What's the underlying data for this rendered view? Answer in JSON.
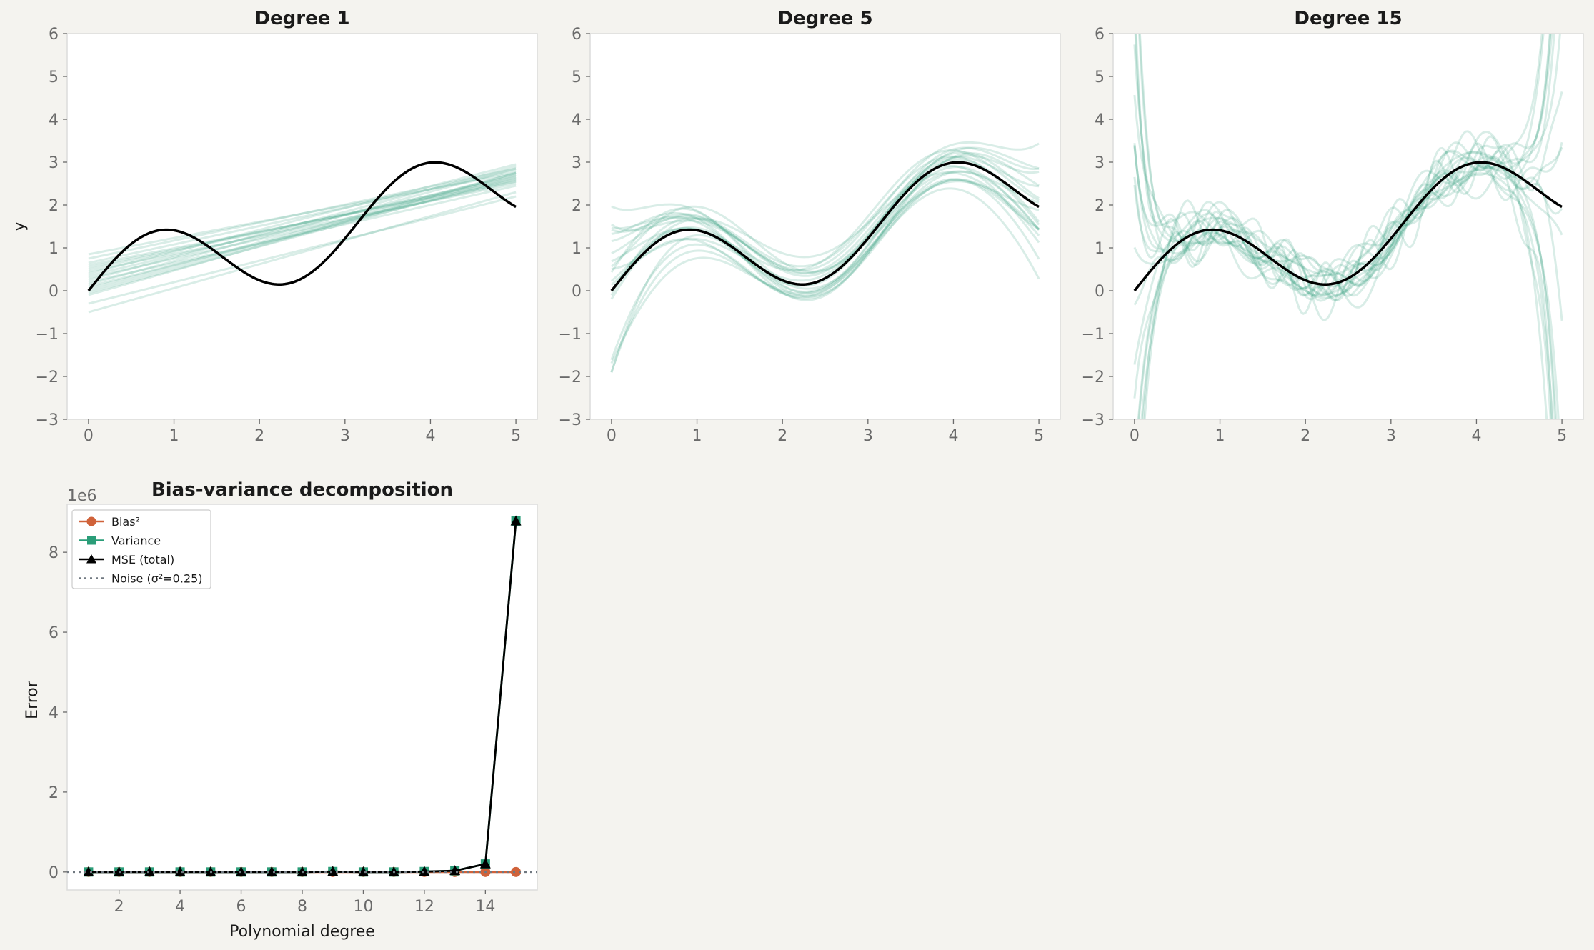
{
  "chart_data": [
    {
      "type": "line",
      "title": "Degree 1",
      "xlabel": "",
      "ylabel": "y",
      "xlim": [
        -0.25,
        5.25
      ],
      "ylim": [
        -3,
        6
      ],
      "x_ticks": [
        0,
        1,
        2,
        3,
        4,
        5
      ],
      "y_ticks": [
        -3,
        -2,
        -1,
        0,
        1,
        2,
        3,
        4,
        5,
        6
      ],
      "tick_labels_x": [
        "0",
        "1",
        "2",
        "3",
        "4",
        "5"
      ],
      "tick_labels_y": [
        "−3",
        "−2",
        "−1",
        "0",
        "1",
        "2",
        "3",
        "4",
        "5",
        "6"
      ],
      "grid": false,
      "true_function": {
        "expr": "sin(2x) + 0.5x",
        "x_range": [
          0,
          5
        ],
        "color": "#000000"
      },
      "fits": {
        "color": "#2a9d78",
        "opacity": 0.18,
        "count": 20,
        "description_values": [
          [
            0.85,
            2.75
          ],
          [
            0.75,
            2.85
          ],
          [
            0.65,
            2.8
          ],
          [
            0.55,
            2.6
          ],
          [
            0.45,
            2.5
          ],
          [
            0.35,
            2.7
          ],
          [
            0.25,
            2.9
          ],
          [
            0.15,
            2.85
          ],
          [
            0.05,
            2.75
          ],
          [
            -0.05,
            2.65
          ],
          [
            0.6,
            2.55
          ],
          [
            0.5,
            2.65
          ],
          [
            0.4,
            2.95
          ],
          [
            0.3,
            2.55
          ],
          [
            0.2,
            2.45
          ],
          [
            0.1,
            2.6
          ],
          [
            0.0,
            2.7
          ],
          [
            -0.1,
            2.75
          ],
          [
            -0.3,
            2.2
          ],
          [
            -0.5,
            2.3
          ]
        ]
      }
    },
    {
      "type": "line",
      "title": "Degree 5",
      "xlabel": "",
      "ylabel": "",
      "xlim": [
        -0.25,
        5.25
      ],
      "ylim": [
        -3,
        6
      ],
      "x_ticks": [
        0,
        1,
        2,
        3,
        4,
        5
      ],
      "y_ticks": [
        -3,
        -2,
        -1,
        0,
        1,
        2,
        3,
        4,
        5,
        6
      ],
      "tick_labels_x": [
        "0",
        "1",
        "2",
        "3",
        "4",
        "5"
      ],
      "tick_labels_y": [
        "−3",
        "−2",
        "−1",
        "0",
        "1",
        "2",
        "3",
        "4",
        "5",
        "6"
      ],
      "grid": false,
      "true_function": {
        "expr": "sin(2x) + 0.5x",
        "x_range": [
          0,
          5
        ],
        "color": "#000000"
      },
      "fits": {
        "color": "#2a9d78",
        "opacity": 0.18,
        "count": 20
      }
    },
    {
      "type": "line",
      "title": "Degree 15",
      "xlabel": "",
      "ylabel": "",
      "xlim": [
        -0.25,
        5.25
      ],
      "ylim": [
        -3,
        6
      ],
      "x_ticks": [
        0,
        1,
        2,
        3,
        4,
        5
      ],
      "y_ticks": [
        -3,
        -2,
        -1,
        0,
        1,
        2,
        3,
        4,
        5,
        6
      ],
      "tick_labels_x": [
        "0",
        "1",
        "2",
        "3",
        "4",
        "5"
      ],
      "tick_labels_y": [
        "−3",
        "−2",
        "−1",
        "0",
        "1",
        "2",
        "3",
        "4",
        "5",
        "6"
      ],
      "grid": false,
      "true_function": {
        "expr": "sin(2x) + 0.5x",
        "x_range": [
          0,
          5
        ],
        "color": "#000000"
      },
      "fits": {
        "color": "#2a9d78",
        "opacity": 0.18,
        "count": 20
      }
    },
    {
      "type": "line",
      "title": "Bias-variance decomposition",
      "xlabel": "Polynomial degree",
      "ylabel": "Error",
      "y_offset_label": "1e6",
      "xlim": [
        0.3,
        15.7
      ],
      "ylim": [
        -0.45,
        9.2
      ],
      "x_ticks": [
        2,
        4,
        6,
        8,
        10,
        12,
        14
      ],
      "y_ticks": [
        0,
        2,
        4,
        6,
        8
      ],
      "tick_labels_x": [
        "2",
        "4",
        "6",
        "8",
        "10",
        "12",
        "14"
      ],
      "tick_labels_y": [
        "0",
        "2",
        "4",
        "6",
        "8"
      ],
      "grid": false,
      "legend_position": "top-left",
      "x": [
        1,
        2,
        3,
        4,
        5,
        6,
        7,
        8,
        9,
        10,
        11,
        12,
        13,
        14,
        15
      ],
      "series": [
        {
          "name": "Bias²",
          "color": "#d0623a",
          "marker": "circle",
          "values": [
            0,
            0,
            0,
            0,
            0,
            0,
            0,
            0,
            0,
            0,
            0,
            0,
            0,
            0,
            0
          ]
        },
        {
          "name": "Variance",
          "color": "#2a9d78",
          "marker": "square",
          "values": [
            0,
            0,
            0,
            0,
            0,
            0,
            0,
            0,
            0.01,
            0,
            0,
            0.01,
            0.03,
            0.2,
            8.78
          ]
        },
        {
          "name": "MSE (total)",
          "color": "#000000",
          "marker": "triangle",
          "values": [
            0,
            0,
            0,
            0,
            0,
            0,
            0,
            0,
            0.01,
            0,
            0,
            0.01,
            0.03,
            0.2,
            8.78
          ]
        },
        {
          "name": "Noise (σ²=0.25)",
          "color": "#707880",
          "marker": "none",
          "dashed": true,
          "values": [
            0,
            0,
            0,
            0,
            0,
            0,
            0,
            0,
            0,
            0,
            0,
            0,
            0,
            0,
            0
          ]
        }
      ]
    }
  ]
}
